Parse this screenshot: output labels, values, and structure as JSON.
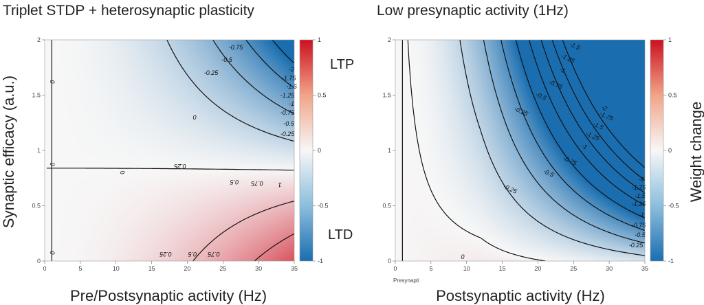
{
  "chart_data": [
    {
      "type": "heatmap",
      "title": "Triplet STDP + heterosynaptic plasticity",
      "xlabel": "Pre/Postsynaptic activity (Hz)",
      "ylabel": "Synaptic efficacy (a.u.)",
      "xlim": [
        0,
        35
      ],
      "ylim": [
        0,
        2
      ],
      "xticks": [
        "0",
        "5",
        "10",
        "15",
        "20",
        "25",
        "30",
        "35"
      ],
      "yticks": [
        "0",
        "0.5",
        "1",
        "1.5",
        "2"
      ],
      "colorbar": {
        "min": -1,
        "max": 1,
        "ticks": [
          "1",
          "0.5",
          "0",
          "-0.5",
          "-1"
        ],
        "label": ""
      },
      "annotations": [
        "LTP",
        "LTD"
      ],
      "contour_levels": [
        "-2",
        "-1.75",
        "-1.5",
        "-1.25",
        "-1",
        "-0.75",
        "-0.5",
        "-0.25",
        "0",
        "0.25",
        "0.5",
        "0.75",
        "1"
      ]
    },
    {
      "type": "heatmap",
      "title": "Low presynaptic activity (1Hz)",
      "xlabel": "Postsynaptic activity (Hz)",
      "ylabel": "",
      "xlim": [
        0,
        35
      ],
      "ylim": [
        0,
        2
      ],
      "xticks": [
        "0",
        "5",
        "10",
        "15",
        "20",
        "25",
        "30",
        "35"
      ],
      "yticks": [
        "0",
        "0.5",
        "1",
        "1.5",
        "2"
      ],
      "colorbar": {
        "min": -1,
        "max": 1,
        "ticks": [
          "1",
          "0.5",
          "0",
          "-0.5",
          "-1"
        ],
        "label": "Weight change"
      },
      "corner_text": "Presynapti",
      "contour_levels": [
        "-2",
        "-1.75",
        "-1.5",
        "-1.25",
        "-1",
        "-0.75",
        "-0.5",
        "-0.25",
        "0"
      ]
    }
  ],
  "colors": {
    "ltp": "#c8102e",
    "ltd": "#1f6fb2",
    "neutral": "#f7f7f7",
    "contour": "#111111"
  }
}
